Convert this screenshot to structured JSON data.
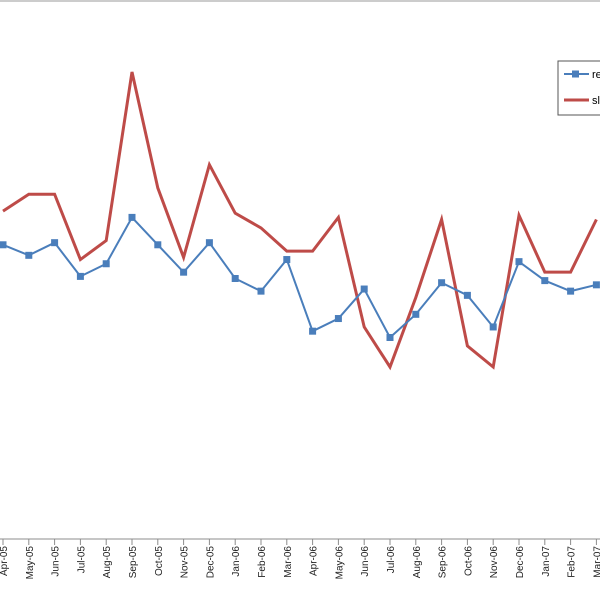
{
  "chart_data": {
    "type": "line",
    "title": "",
    "xlabel": "",
    "ylabel": "",
    "categories": [
      "Apr-05",
      "May-05",
      "Jun-05",
      "Jul-05",
      "Aug-05",
      "Sep-05",
      "Oct-05",
      "Nov-05",
      "Dec-05",
      "Jan-06",
      "Feb-06",
      "Mar-06",
      "Apr-06",
      "May-06",
      "Jun-06",
      "Jul-06",
      "Aug-06",
      "Sep-06",
      "Oct-06",
      "Nov-06",
      "Dec-06",
      "Jan-07",
      "Feb-07",
      "Mar-07"
    ],
    "series": [
      {
        "name": "re",
        "color": "#4a7ebb",
        "marker": "square",
        "values": [
          0.64,
          0.59,
          0.65,
          0.49,
          0.55,
          0.77,
          0.64,
          0.51,
          0.65,
          0.48,
          0.42,
          0.57,
          0.23,
          0.29,
          0.43,
          0.2,
          0.31,
          0.46,
          0.4,
          0.25,
          0.56,
          0.47,
          0.42,
          0.45
        ]
      },
      {
        "name": "sl",
        "color": "#be4b48",
        "marker": "none",
        "values": [
          0.8,
          0.88,
          0.88,
          0.57,
          0.66,
          1.46,
          0.91,
          0.58,
          1.02,
          0.79,
          0.72,
          0.61,
          0.61,
          0.77,
          0.25,
          0.06,
          0.39,
          0.76,
          0.16,
          0.06,
          0.78,
          0.51,
          0.51,
          0.76
        ]
      }
    ],
    "legend": {
      "position": "top-right",
      "entries": [
        "re",
        "sl"
      ]
    },
    "grid": false
  }
}
